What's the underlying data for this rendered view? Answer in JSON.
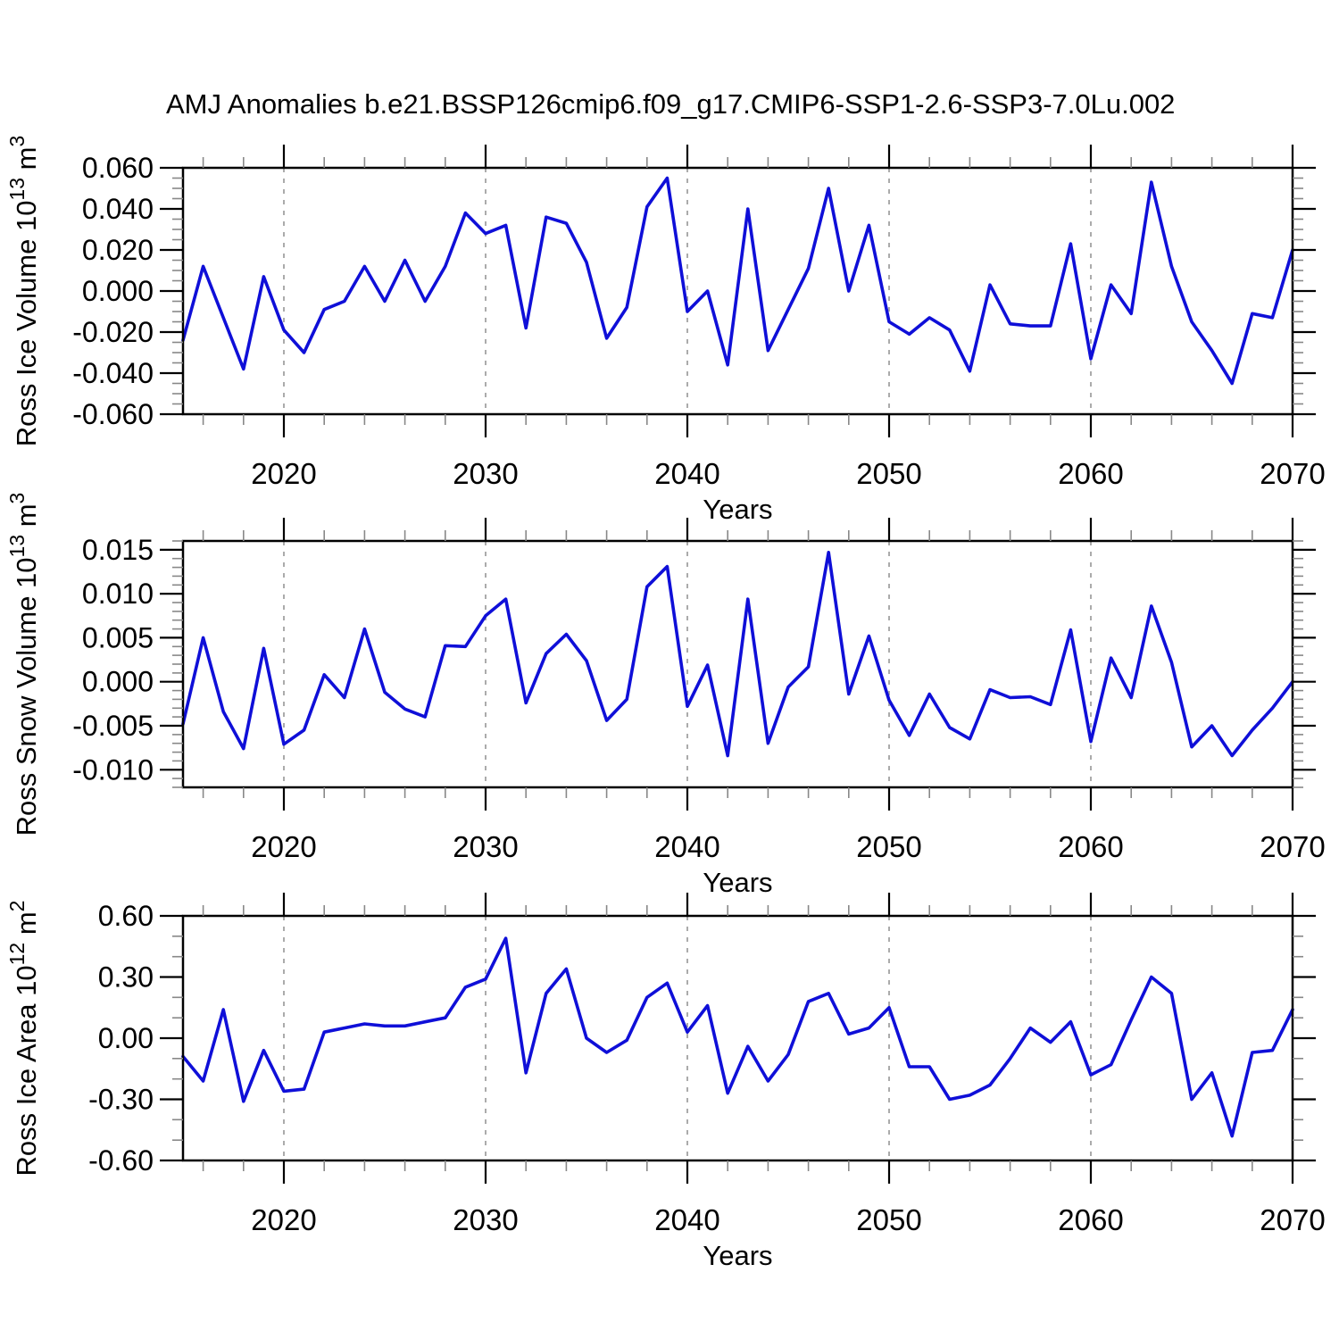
{
  "title": "AMJ Anomalies b.e21.BSSP126cmip6.f09_g17.CMIP6-SSP1-2.6-SSP3-7.0Lu.002",
  "colors": {
    "line": "#0F0FD8",
    "axis": "#000000",
    "grid": "#ABABAB",
    "minor_tick": "#888888",
    "text": "#000000",
    "background": "#FFFFFF"
  },
  "x_axis": {
    "label": "Years",
    "range": [
      2015,
      2070
    ],
    "major_ticks": [
      2020,
      2030,
      2040,
      2050,
      2060,
      2070
    ],
    "minor_step": 2,
    "grid_years": [
      2020,
      2030,
      2040,
      2050,
      2060
    ]
  },
  "chart_data": [
    {
      "type": "line",
      "ylabel": "Ross Ice Volume 10¹³ m³",
      "ylabel_parts": [
        [
          "n",
          "Ross Ice Volume 10"
        ],
        [
          "s",
          "13"
        ],
        [
          "n",
          " m"
        ],
        [
          "s",
          "3"
        ]
      ],
      "xlabel": "Years",
      "ylim": [
        -0.06,
        0.06
      ],
      "ytick_step": 0.02,
      "yminor_step": 0.005,
      "decimals": 3,
      "grid": "vertical-dashed-decades",
      "x": [
        2015,
        2016,
        2017,
        2018,
        2019,
        2020,
        2021,
        2022,
        2023,
        2024,
        2025,
        2026,
        2027,
        2028,
        2029,
        2030,
        2031,
        2032,
        2033,
        2034,
        2035,
        2036,
        2037,
        2038,
        2039,
        2040,
        2041,
        2042,
        2043,
        2044,
        2045,
        2046,
        2047,
        2048,
        2049,
        2050,
        2051,
        2052,
        2053,
        2054,
        2055,
        2056,
        2057,
        2058,
        2059,
        2060,
        2061,
        2062,
        2063,
        2064,
        2065,
        2066,
        2067,
        2068,
        2069,
        2070
      ],
      "values": [
        -0.024,
        0.012,
        -0.013,
        -0.038,
        0.007,
        -0.019,
        -0.03,
        -0.009,
        -0.005,
        0.012,
        -0.005,
        0.015,
        -0.005,
        0.012,
        0.038,
        0.028,
        0.032,
        -0.018,
        0.036,
        0.033,
        0.014,
        -0.023,
        -0.008,
        0.041,
        0.055,
        -0.01,
        0.0,
        -0.036,
        0.04,
        -0.029,
        -0.009,
        0.011,
        0.05,
        0.0,
        0.032,
        -0.015,
        -0.021,
        -0.013,
        -0.019,
        -0.039,
        0.003,
        -0.016,
        -0.017,
        -0.017,
        0.023,
        -0.033,
        0.003,
        -0.011,
        0.053,
        0.012,
        -0.015,
        -0.029,
        -0.045,
        -0.011,
        -0.013,
        0.02
      ]
    },
    {
      "type": "line",
      "ylabel": "Ross Snow Volume 10¹³ m³",
      "ylabel_parts": [
        [
          "n",
          "Ross Snow Volume 10"
        ],
        [
          "s",
          "13"
        ],
        [
          "n",
          " m"
        ],
        [
          "s",
          "3"
        ]
      ],
      "xlabel": "Years",
      "ylim": [
        -0.012,
        0.016
      ],
      "ytick_step": 0.005,
      "yminor_step": 0.001,
      "decimals": 3,
      "grid": "vertical-dashed-decades",
      "x": [
        2015,
        2016,
        2017,
        2018,
        2019,
        2020,
        2021,
        2022,
        2023,
        2024,
        2025,
        2026,
        2027,
        2028,
        2029,
        2030,
        2031,
        2032,
        2033,
        2034,
        2035,
        2036,
        2037,
        2038,
        2039,
        2040,
        2041,
        2042,
        2043,
        2044,
        2045,
        2046,
        2047,
        2048,
        2049,
        2050,
        2051,
        2052,
        2053,
        2054,
        2055,
        2056,
        2057,
        2058,
        2059,
        2060,
        2061,
        2062,
        2063,
        2064,
        2065,
        2066,
        2067,
        2068,
        2069,
        2070
      ],
      "values": [
        -0.0048,
        0.005,
        -0.0034,
        -0.0076,
        0.0038,
        -0.0071,
        -0.0055,
        0.0008,
        -0.0018,
        0.006,
        -0.0012,
        -0.0031,
        -0.004,
        0.0041,
        0.004,
        0.0075,
        0.0094,
        -0.0024,
        0.0032,
        0.0054,
        0.0024,
        -0.0044,
        -0.002,
        0.0108,
        0.0131,
        -0.0028,
        0.0019,
        -0.0084,
        0.0094,
        -0.007,
        -0.0006,
        0.0017,
        0.0147,
        -0.0014,
        0.0052,
        -0.0021,
        -0.0061,
        -0.0014,
        -0.0052,
        -0.0065,
        -0.0009,
        -0.0018,
        -0.0017,
        -0.0026,
        0.0059,
        -0.0068,
        0.0027,
        -0.0018,
        0.0086,
        0.0022,
        -0.0074,
        -0.005,
        -0.0084,
        -0.0055,
        -0.003,
        0.0
      ]
    },
    {
      "type": "line",
      "ylabel": "Ross Ice Area 10¹² m²",
      "ylabel_parts": [
        [
          "n",
          "Ross Ice Area 10"
        ],
        [
          "s",
          "12"
        ],
        [
          "n",
          " m"
        ],
        [
          "s",
          "2"
        ]
      ],
      "xlabel": "Years",
      "ylim": [
        -0.6,
        0.6
      ],
      "ytick_step": 0.3,
      "yminor_step": 0.1,
      "decimals": 2,
      "grid": "vertical-dashed-decades",
      "x": [
        2015,
        2016,
        2017,
        2018,
        2019,
        2020,
        2021,
        2022,
        2023,
        2024,
        2025,
        2026,
        2027,
        2028,
        2029,
        2030,
        2031,
        2032,
        2033,
        2034,
        2035,
        2036,
        2037,
        2038,
        2039,
        2040,
        2041,
        2042,
        2043,
        2044,
        2045,
        2046,
        2047,
        2048,
        2049,
        2050,
        2051,
        2052,
        2053,
        2054,
        2055,
        2056,
        2057,
        2058,
        2059,
        2060,
        2061,
        2062,
        2063,
        2064,
        2065,
        2066,
        2067,
        2068,
        2069,
        2070
      ],
      "values": [
        -0.09,
        -0.21,
        0.14,
        -0.31,
        -0.06,
        -0.26,
        -0.25,
        0.03,
        0.05,
        0.07,
        0.06,
        0.06,
        0.08,
        0.1,
        0.25,
        0.29,
        0.49,
        -0.17,
        0.22,
        0.34,
        0.0,
        -0.07,
        -0.01,
        0.2,
        0.27,
        0.03,
        0.16,
        -0.27,
        -0.04,
        -0.21,
        -0.08,
        0.18,
        0.22,
        0.02,
        0.05,
        0.15,
        -0.14,
        -0.14,
        -0.3,
        -0.28,
        -0.23,
        -0.1,
        0.05,
        -0.02,
        0.08,
        -0.18,
        -0.13,
        0.09,
        0.3,
        0.22,
        -0.3,
        -0.17,
        -0.48,
        -0.07,
        -0.06,
        0.14
      ]
    }
  ]
}
